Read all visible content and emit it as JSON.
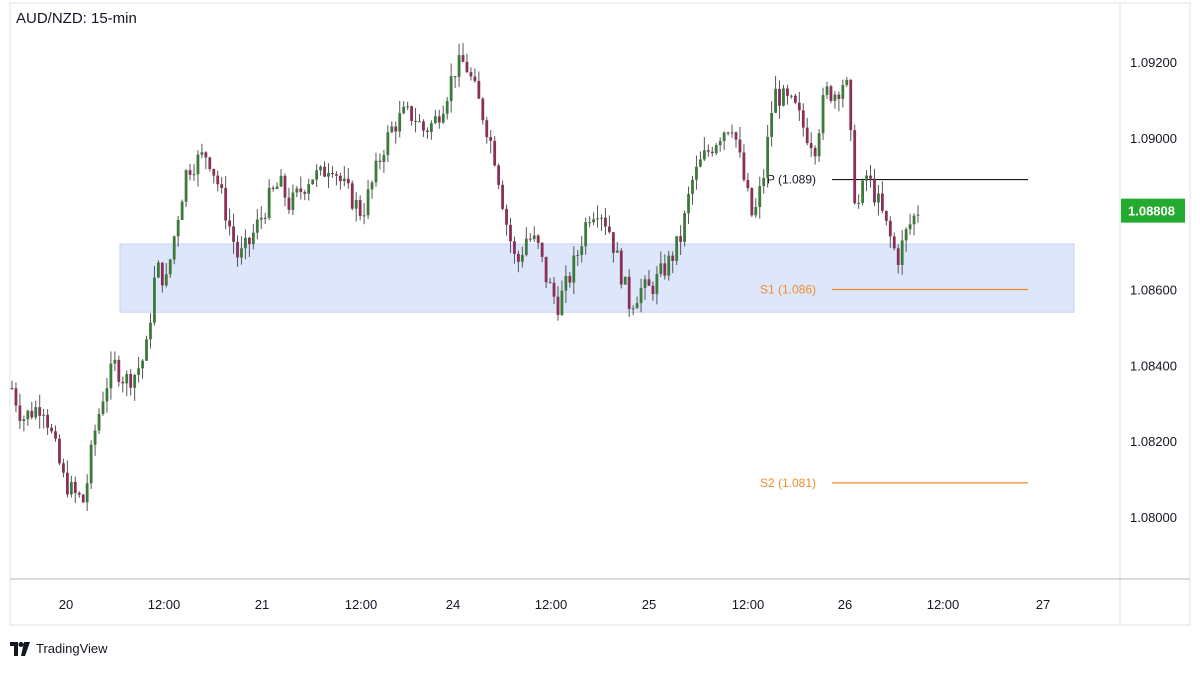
{
  "chart_data": {
    "type": "candlestick",
    "title": "AUD/NZD: 15-min",
    "price_range": [
      1.0785,
      1.0938
    ],
    "y_ticks": [
      "1.09200",
      "1.09000",
      "1.08800",
      "1.08600",
      "1.08400",
      "1.08200",
      "1.08000"
    ],
    "y_tick_values": [
      1.092,
      1.09,
      1.088,
      1.086,
      1.084,
      1.082,
      1.08
    ],
    "x_ticks": [
      "20",
      "12:00",
      "21",
      "12:00",
      "24",
      "12:00",
      "25",
      "12:00",
      "26",
      "12:00",
      "27"
    ],
    "current_price": {
      "label": "1.08808",
      "value": 1.08808,
      "color": "#22ab2e"
    },
    "grid": false,
    "support_zone": {
      "low": 1.0854,
      "high": 1.0872,
      "color": "#dde6fb"
    },
    "levels": [
      {
        "label": "P (1.089)",
        "value": 1.0889,
        "color": "#131722"
      },
      {
        "label": "S1 (1.086)",
        "value": 1.086,
        "color": "#f28c28"
      },
      {
        "label": "S2 (1.081)",
        "value": 1.0809,
        "color": "#f28c28"
      }
    ],
    "candle_colors": {
      "up": "#3c7a3c",
      "down": "#8a2f58",
      "wick": "#555555"
    },
    "price_path": [
      [
        0,
        1.0834
      ],
      [
        1,
        1.0826
      ],
      [
        2,
        1.0828
      ],
      [
        3,
        1.083
      ],
      [
        4,
        1.082
      ],
      [
        5,
        1.081
      ],
      [
        6,
        1.0806
      ],
      [
        7,
        1.0804
      ],
      [
        8,
        1.0822
      ],
      [
        9,
        1.0834
      ],
      [
        10,
        1.084
      ],
      [
        11,
        1.0836
      ],
      [
        12,
        1.0838
      ],
      [
        13,
        1.0843
      ],
      [
        14,
        1.0866
      ],
      [
        15,
        1.0862
      ],
      [
        16,
        1.0878
      ],
      [
        17,
        1.0892
      ],
      [
        18,
        1.0894
      ],
      [
        19,
        1.0896
      ],
      [
        20,
        1.0888
      ],
      [
        21,
        1.0878
      ],
      [
        22,
        1.0868
      ],
      [
        23,
        1.0872
      ],
      [
        24,
        1.0878
      ],
      [
        25,
        1.0884
      ],
      [
        26,
        1.0888
      ],
      [
        27,
        1.0882
      ],
      [
        28,
        1.0886
      ],
      [
        29,
        1.089
      ],
      [
        30,
        1.089
      ],
      [
        31,
        1.0894
      ],
      [
        32,
        1.0888
      ],
      [
        33,
        1.0884
      ],
      [
        34,
        1.088
      ],
      [
        35,
        1.0888
      ],
      [
        36,
        1.0897
      ],
      [
        37,
        1.0903
      ],
      [
        38,
        1.0906
      ],
      [
        39,
        1.0906
      ],
      [
        40,
        1.0902
      ],
      [
        41,
        1.0904
      ],
      [
        42,
        1.091
      ],
      [
        43,
        1.0918
      ],
      [
        44,
        1.092
      ],
      [
        45,
        1.0912
      ],
      [
        46,
        1.0904
      ],
      [
        47,
        1.0894
      ],
      [
        48,
        1.0878
      ],
      [
        49,
        1.0866
      ],
      [
        50,
        1.0874
      ],
      [
        51,
        1.0872
      ],
      [
        52,
        1.0862
      ],
      [
        53,
        1.0856
      ],
      [
        54,
        1.0862
      ],
      [
        55,
        1.087
      ],
      [
        56,
        1.088
      ],
      [
        57,
        1.0882
      ],
      [
        58,
        1.0876
      ],
      [
        59,
        1.0866
      ],
      [
        60,
        1.0856
      ],
      [
        61,
        1.086
      ],
      [
        62,
        1.086
      ],
      [
        63,
        1.0864
      ],
      [
        64,
        1.0868
      ],
      [
        65,
        1.0874
      ],
      [
        66,
        1.0888
      ],
      [
        67,
        1.0894
      ],
      [
        68,
        1.0898
      ],
      [
        69,
        1.0902
      ],
      [
        70,
        1.0904
      ],
      [
        71,
        1.089
      ],
      [
        72,
        1.0878
      ],
      [
        73,
        1.089
      ],
      [
        74,
        1.0912
      ],
      [
        75,
        1.091
      ],
      [
        76,
        1.0908
      ],
      [
        77,
        1.0902
      ],
      [
        78,
        1.0898
      ],
      [
        79,
        1.0912
      ],
      [
        80,
        1.0912
      ],
      [
        81,
        1.0916
      ],
      [
        82,
        1.088
      ],
      [
        83,
        1.089
      ],
      [
        84,
        1.0884
      ],
      [
        85,
        1.0876
      ],
      [
        86,
        1.0868
      ],
      [
        87,
        1.0876
      ],
      [
        88,
        1.0881
      ]
    ]
  },
  "brand": {
    "name": "TradingView"
  }
}
